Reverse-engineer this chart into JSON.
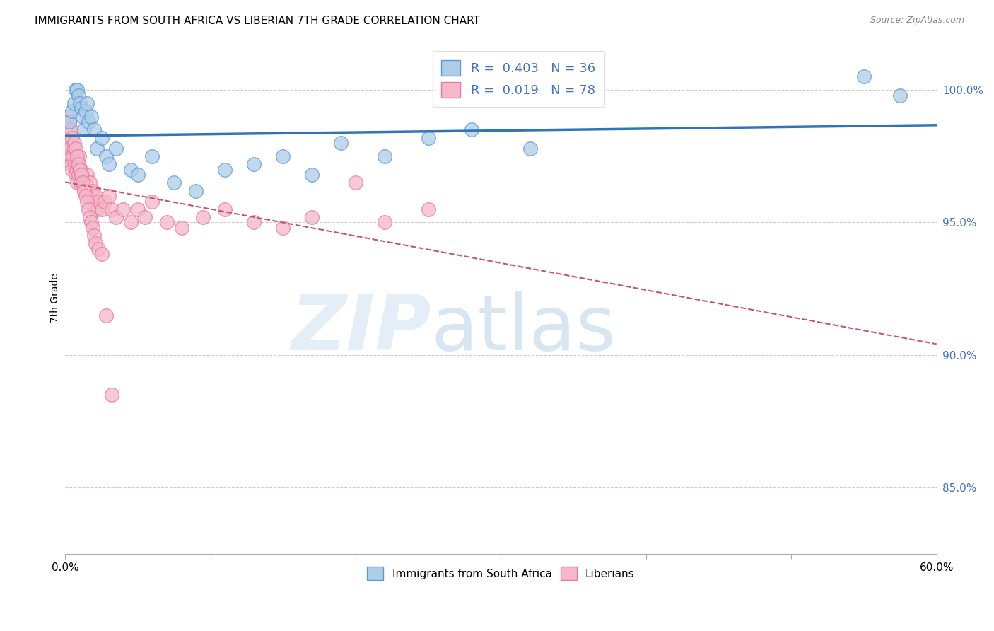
{
  "title": "IMMIGRANTS FROM SOUTH AFRICA VS LIBERIAN 7TH GRADE CORRELATION CHART",
  "source": "Source: ZipAtlas.com",
  "ylabel": "7th Grade",
  "legend_label_blue": "R =  0.403   N = 36",
  "legend_label_pink": "R =  0.019   N = 78",
  "legend_label_blue_bottom": "Immigrants from South Africa",
  "legend_label_pink_bottom": "Liberians",
  "blue_color": "#aecde8",
  "pink_color": "#f4b8c8",
  "blue_edge_color": "#5b9bd5",
  "pink_edge_color": "#e87aa0",
  "blue_line_color": "#2e75b6",
  "pink_line_color": "#c9546e",
  "x_min": 0.0,
  "x_max": 60.0,
  "y_min": 82.5,
  "y_max": 101.8,
  "yticks": [
    85.0,
    90.0,
    95.0,
    100.0
  ],
  "blue_scatter_x": [
    0.3,
    0.5,
    0.6,
    0.7,
    0.8,
    0.9,
    1.0,
    1.1,
    1.2,
    1.3,
    1.4,
    1.5,
    1.6,
    1.8,
    2.0,
    2.2,
    2.5,
    2.8,
    3.0,
    3.5,
    4.5,
    5.0,
    6.0,
    7.5,
    9.0,
    11.0,
    13.0,
    15.0,
    17.0,
    19.0,
    22.0,
    25.0,
    28.0,
    32.0,
    55.0,
    57.5
  ],
  "blue_scatter_y": [
    98.8,
    99.2,
    99.5,
    100.0,
    100.0,
    99.8,
    99.5,
    99.3,
    99.0,
    98.5,
    99.2,
    99.5,
    98.8,
    99.0,
    98.5,
    97.8,
    98.2,
    97.5,
    97.2,
    97.8,
    97.0,
    96.8,
    97.5,
    96.5,
    96.2,
    97.0,
    97.2,
    97.5,
    96.8,
    98.0,
    97.5,
    98.2,
    98.5,
    97.8,
    100.5,
    99.8
  ],
  "pink_scatter_x": [
    0.1,
    0.15,
    0.2,
    0.25,
    0.3,
    0.35,
    0.4,
    0.45,
    0.5,
    0.55,
    0.6,
    0.65,
    0.7,
    0.75,
    0.8,
    0.85,
    0.9,
    0.95,
    1.0,
    1.05,
    1.1,
    1.15,
    1.2,
    1.3,
    1.4,
    1.5,
    1.6,
    1.7,
    1.8,
    1.9,
    2.0,
    2.1,
    2.2,
    2.3,
    2.5,
    2.7,
    3.0,
    3.2,
    3.5,
    4.0,
    4.5,
    5.0,
    5.5,
    6.0,
    7.0,
    8.0,
    9.5,
    11.0,
    13.0,
    15.0,
    17.0,
    20.0,
    22.0,
    25.0,
    0.2,
    0.3,
    0.4,
    0.5,
    0.6,
    0.7,
    0.8,
    0.9,
    1.0,
    1.1,
    1.2,
    1.3,
    1.4,
    1.5,
    1.6,
    1.7,
    1.8,
    1.9,
    2.0,
    2.1,
    2.3,
    2.5,
    2.8,
    3.2
  ],
  "pink_scatter_y": [
    97.5,
    97.8,
    98.0,
    98.2,
    98.5,
    97.8,
    97.5,
    97.2,
    97.0,
    97.5,
    97.8,
    97.2,
    96.8,
    97.0,
    96.5,
    97.2,
    96.8,
    97.5,
    97.0,
    96.5,
    97.0,
    96.8,
    96.5,
    96.2,
    96.5,
    96.8,
    96.2,
    96.5,
    96.0,
    96.2,
    95.8,
    96.0,
    95.5,
    95.8,
    95.5,
    95.8,
    96.0,
    95.5,
    95.2,
    95.5,
    95.0,
    95.5,
    95.2,
    95.8,
    95.0,
    94.8,
    95.2,
    95.5,
    95.0,
    94.8,
    95.2,
    96.5,
    95.0,
    95.5,
    99.0,
    98.8,
    98.5,
    98.2,
    98.0,
    97.8,
    97.5,
    97.2,
    97.0,
    96.8,
    96.5,
    96.2,
    96.0,
    95.8,
    95.5,
    95.2,
    95.0,
    94.8,
    94.5,
    94.2,
    94.0,
    93.8,
    91.5,
    88.5
  ]
}
